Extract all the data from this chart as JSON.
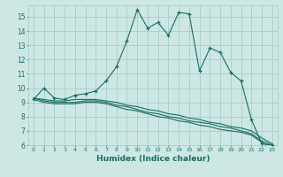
{
  "xlabel": "Humidex (Indice chaleur)",
  "bg_color": "#cde8e4",
  "grid_color": "#aaccca",
  "line_color": "#1a6b63",
  "x_values": [
    0,
    1,
    2,
    3,
    4,
    5,
    6,
    7,
    8,
    9,
    10,
    11,
    12,
    13,
    14,
    15,
    16,
    17,
    18,
    19,
    20,
    21,
    22,
    23
  ],
  "series1": [
    9.2,
    10.0,
    9.3,
    9.2,
    9.5,
    9.6,
    9.8,
    10.5,
    11.5,
    13.3,
    15.5,
    14.2,
    14.6,
    13.7,
    15.3,
    15.2,
    11.2,
    12.8,
    12.5,
    11.1,
    10.5,
    7.8,
    6.1,
    6.0
  ],
  "series2": [
    9.3,
    9.2,
    9.1,
    9.1,
    9.2,
    9.2,
    9.2,
    9.1,
    9.0,
    8.8,
    8.7,
    8.5,
    8.4,
    8.2,
    8.1,
    7.9,
    7.8,
    7.6,
    7.5,
    7.3,
    7.2,
    7.0,
    6.5,
    6.1
  ],
  "series3": [
    9.3,
    9.1,
    9.0,
    9.0,
    9.0,
    9.1,
    9.1,
    9.0,
    8.8,
    8.7,
    8.5,
    8.3,
    8.2,
    8.0,
    7.9,
    7.7,
    7.6,
    7.5,
    7.3,
    7.2,
    7.0,
    6.8,
    6.3,
    6.0
  ],
  "series4": [
    9.2,
    9.0,
    8.9,
    8.9,
    8.9,
    9.0,
    9.0,
    8.9,
    8.7,
    8.5,
    8.4,
    8.2,
    8.0,
    7.9,
    7.7,
    7.6,
    7.4,
    7.3,
    7.1,
    7.0,
    6.9,
    6.7,
    6.2,
    5.8
  ],
  "ylim": [
    6,
    15.8
  ],
  "yticks": [
    6,
    7,
    8,
    9,
    10,
    11,
    12,
    13,
    14,
    15
  ],
  "xticks": [
    0,
    1,
    2,
    3,
    4,
    5,
    6,
    7,
    8,
    9,
    10,
    11,
    12,
    13,
    14,
    15,
    16,
    17,
    18,
    19,
    20,
    21,
    22,
    23
  ],
  "marker": "+"
}
